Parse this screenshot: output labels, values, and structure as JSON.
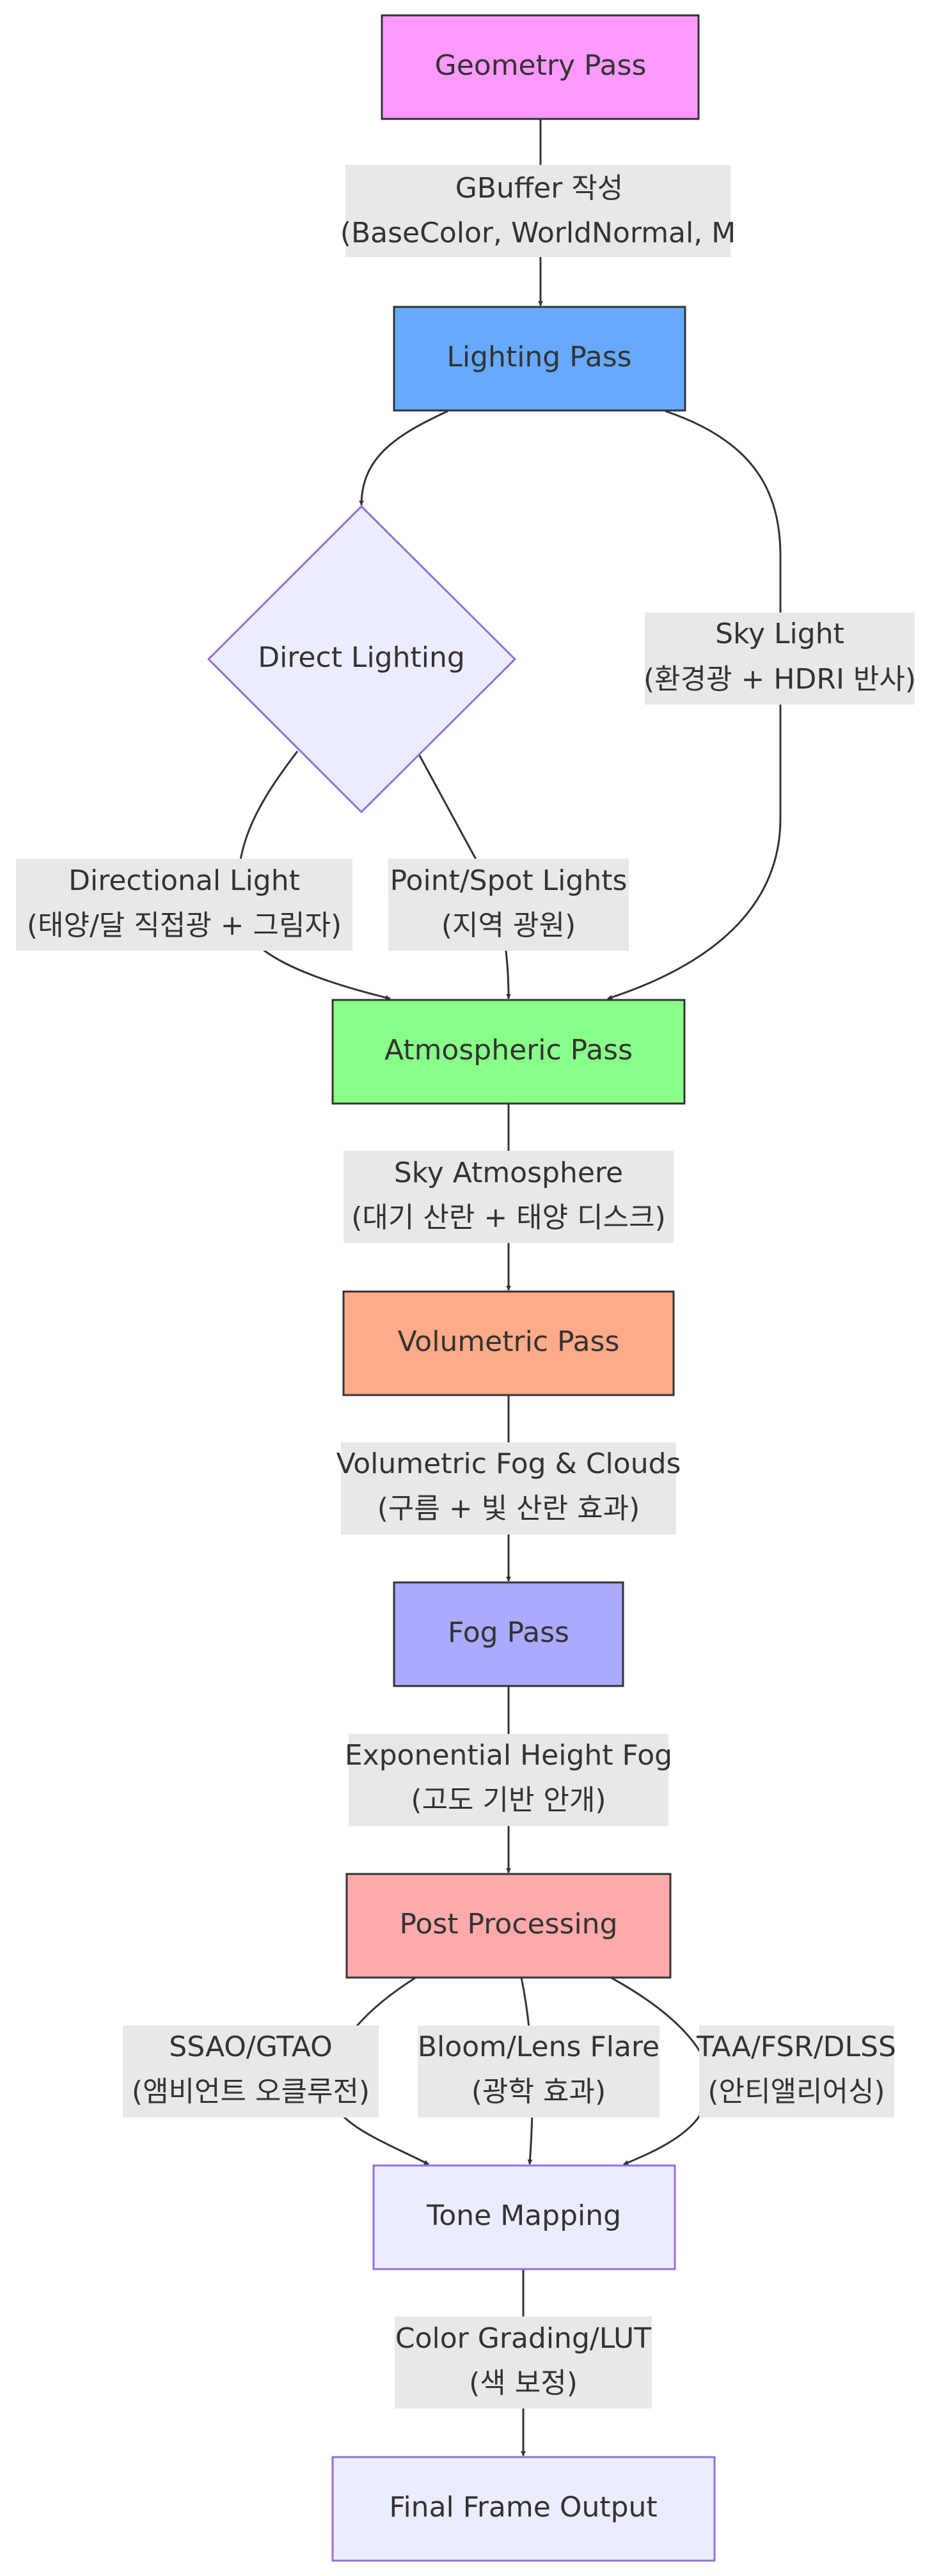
{
  "nodes": {
    "geometry": {
      "label": "Geometry Pass",
      "fill": "#ff99ff"
    },
    "lighting": {
      "label": "Lighting Pass",
      "fill": "#66aaff"
    },
    "direct": {
      "label": "Direct Lighting",
      "fill": "#ececff"
    },
    "atmospheric": {
      "label": "Atmospheric Pass",
      "fill": "#88ff88"
    },
    "volumetric": {
      "label": "Volumetric Pass",
      "fill": "#ffaa88"
    },
    "fog": {
      "label": "Fog Pass",
      "fill": "#aaaaff"
    },
    "post": {
      "label": "Post Processing",
      "fill": "#ffaaaa"
    },
    "tone": {
      "label": "Tone Mapping",
      "fill": "#ececff"
    },
    "final": {
      "label": "Final Frame Output",
      "fill": "#ececff"
    }
  },
  "edges": {
    "gbuffer": {
      "line1": "GBuffer 작성",
      "line2": "(BaseColor, WorldNormal, M"
    },
    "sky_light": {
      "line1": "Sky Light",
      "line2": "(환경광 + HDRI 반사)"
    },
    "directional": {
      "line1": "Directional Light",
      "line2": "(태양/달 직접광 + 그림자)"
    },
    "point_spot": {
      "line1": "Point/Spot Lights",
      "line2": "(지역 광원)"
    },
    "sky_atmosphere": {
      "line1": "Sky Atmosphere",
      "line2": "(대기 산란 + 태양 디스크)"
    },
    "volumetric_fog": {
      "line1": "Volumetric Fog & Clouds",
      "line2": "(구름 + 빛 산란 효과)"
    },
    "height_fog": {
      "line1": "Exponential Height Fog",
      "line2": "(고도 기반 안개)"
    },
    "ssao": {
      "line1": "SSAO/GTAO",
      "line2": "(앰비언트 오클루전)"
    },
    "bloom": {
      "line1": "Bloom/Lens Flare",
      "line2": "(광학 효과)"
    },
    "taa": {
      "line1": "TAA/FSR/DLSS",
      "line2": "(안티앨리어싱)"
    },
    "color_grading": {
      "line1": "Color Grading/LUT",
      "line2": "(색 보정)"
    }
  }
}
